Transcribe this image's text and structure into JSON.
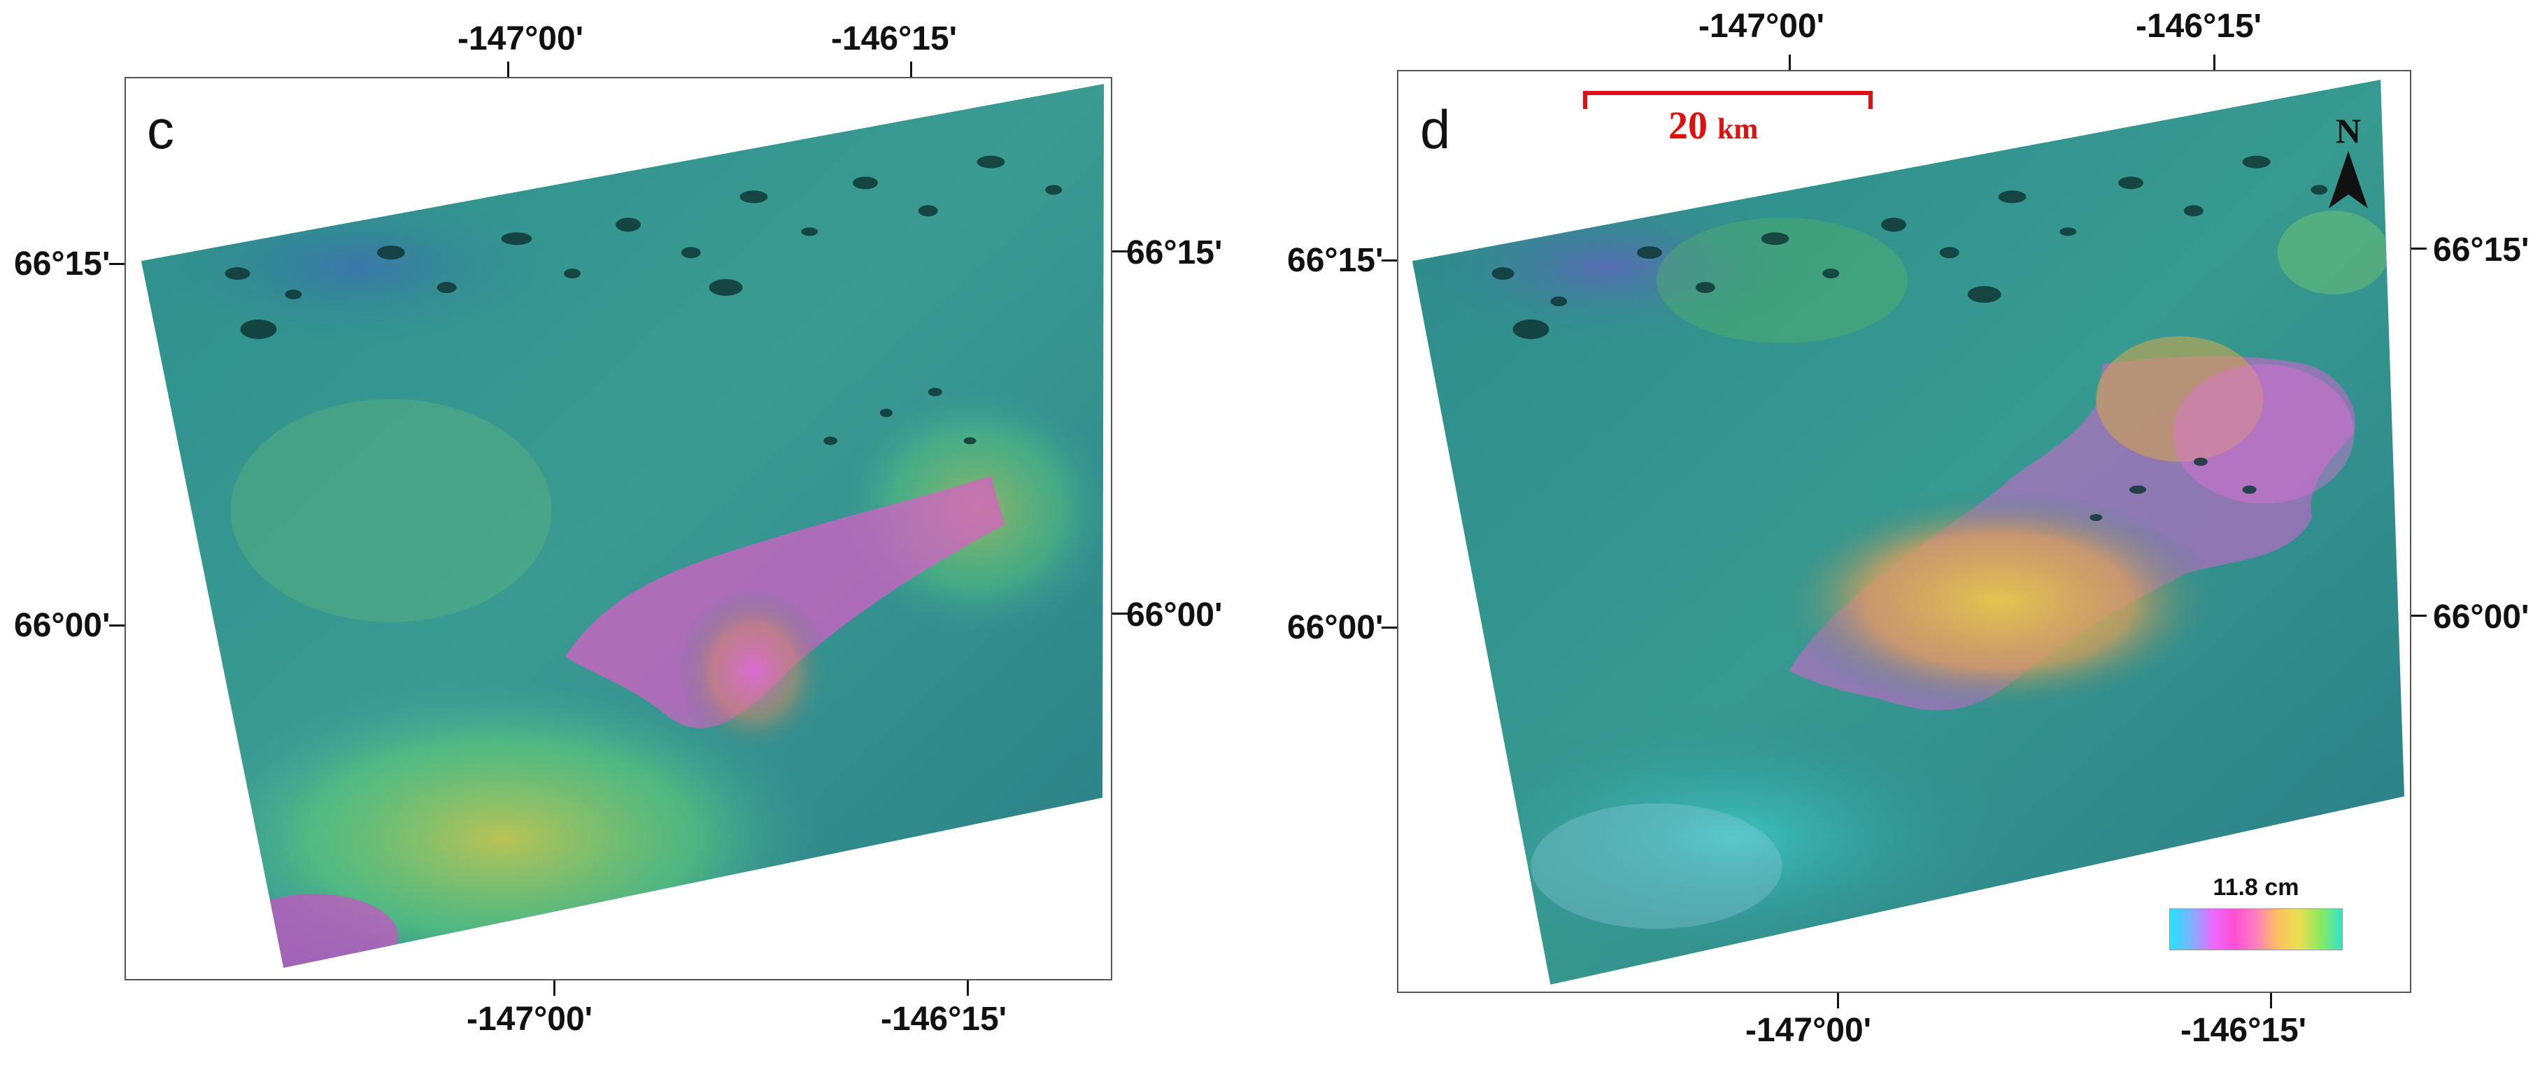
{
  "panels": [
    {
      "letter": "c",
      "ticks": {
        "top": [
          "-147°00'",
          "-146°15'"
        ],
        "bottom": [
          "-147°00'",
          "-146°15'"
        ],
        "left": [
          "66°15'",
          "66°00'"
        ],
        "right": [
          "66°15'",
          "66°00'"
        ]
      }
    },
    {
      "letter": "d",
      "ticks": {
        "top": [
          "-147°00'",
          "-146°15'"
        ],
        "bottom": [
          "-147°00'",
          "-146°15'"
        ],
        "left": [
          "66°15'",
          "66°00'"
        ],
        "right": [
          "66°15'",
          "66°00'"
        ]
      },
      "scale_bar": {
        "value": "20",
        "unit": "km"
      },
      "north_arrow": "N",
      "legend": {
        "label": "11.8 cm",
        "colors": [
          "#22e6ff",
          "#7fb0ff",
          "#e86bff",
          "#ff4fd2",
          "#ff7fc0",
          "#ffc060",
          "#e8e050",
          "#8ee860",
          "#30e6c8"
        ]
      }
    }
  ],
  "colors": {
    "base": "#2f8a88",
    "water": "#123a38",
    "frame": "#555555",
    "scale_bar": "#e01010"
  },
  "icons": [
    "north-arrow-icon"
  ]
}
